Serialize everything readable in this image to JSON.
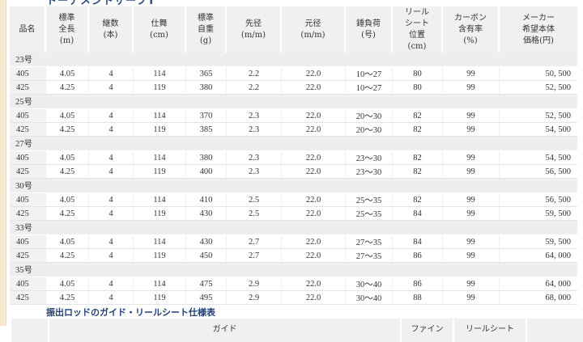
{
  "page": {
    "title_clipped": "トーナメントサーフT",
    "colors": {
      "left_stripe": "#f6e9cd",
      "heading_navy": "#1f3e78",
      "header_cell_bg": "#f0f0ef"
    }
  },
  "spec_table": {
    "columns": [
      "品名",
      "標準\n全長\n(m)",
      "継数\n(本)",
      "仕舞\n(cm)",
      "標準\n自重\n(g)",
      "先径\n(m/m)",
      "元径\n(m/m)",
      "錘負荷\n(号)",
      "リール\nシート\n位置\n(cm)",
      "カーボン\n含有率\n(%)",
      "メーカー\n希望本体\n価格(円)"
    ],
    "groups": [
      {
        "label": "23号",
        "rows": [
          [
            "405",
            "4.05",
            "4",
            "114",
            "365",
            "2.2",
            "22.0",
            "10～27",
            "80",
            "99",
            "50, 500"
          ],
          [
            "425",
            "4.25",
            "4",
            "119",
            "380",
            "2.2",
            "22.0",
            "10～27",
            "80",
            "99",
            "52, 500"
          ]
        ]
      },
      {
        "label": "25号",
        "rows": [
          [
            "405",
            "4.05",
            "4",
            "114",
            "370",
            "2.3",
            "22.0",
            "20～30",
            "82",
            "99",
            "52, 500"
          ],
          [
            "425",
            "4.25",
            "4",
            "119",
            "385",
            "2.3",
            "22.0",
            "20～30",
            "82",
            "99",
            "54, 500"
          ]
        ]
      },
      {
        "label": "27号",
        "rows": [
          [
            "405",
            "4.05",
            "4",
            "114",
            "380",
            "2.3",
            "22.0",
            "23～30",
            "82",
            "99",
            "54, 500"
          ],
          [
            "425",
            "4.25",
            "4",
            "119",
            "400",
            "2.3",
            "22.0",
            "23～30",
            "82",
            "99",
            "56, 500"
          ]
        ]
      },
      {
        "label": "30号",
        "rows": [
          [
            "405",
            "4.05",
            "4",
            "114",
            "410",
            "2.5",
            "22.0",
            "25～35",
            "82",
            "99",
            "56, 500"
          ],
          [
            "425",
            "4.25",
            "4",
            "119",
            "430",
            "2.5",
            "22.0",
            "25～35",
            "84",
            "99",
            "59, 500"
          ]
        ]
      },
      {
        "label": "33号",
        "rows": [
          [
            "405",
            "4.05",
            "4",
            "114",
            "430",
            "2.7",
            "22.0",
            "27～35",
            "84",
            "99",
            "59, 500"
          ],
          [
            "425",
            "4.25",
            "4",
            "119",
            "450",
            "2.7",
            "22.0",
            "27～35",
            "86",
            "99",
            "64, 000"
          ]
        ]
      },
      {
        "label": "35号",
        "rows": [
          [
            "405",
            "4.05",
            "4",
            "114",
            "475",
            "2.9",
            "22.0",
            "30～40",
            "86",
            "99",
            "64, 000"
          ],
          [
            "425",
            "4.25",
            "4",
            "119",
            "495",
            "2.9",
            "22.0",
            "30～40",
            "88",
            "99",
            "68, 000"
          ]
        ]
      }
    ]
  },
  "guide_table": {
    "heading": "振出ロッドのガイド・リールシート仕様表",
    "partial_headers": [
      "ガイド",
      "ファイン",
      "リールシート"
    ]
  }
}
